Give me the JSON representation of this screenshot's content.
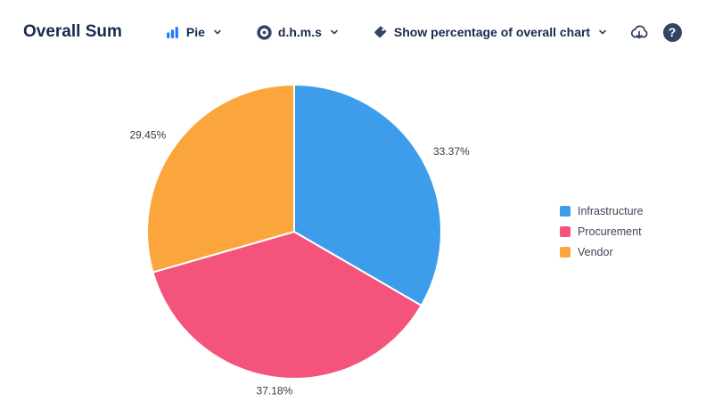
{
  "header": {
    "title": "Overall Sum",
    "chart_type": {
      "label": "Pie",
      "icon": "bar-chart-icon"
    },
    "time_format": {
      "label": "d.h.m.s",
      "icon": "clock-icon"
    },
    "percentage_option": {
      "label": "Show percentage of overall chart",
      "icon": "tag-icon"
    },
    "help_glyph": "?",
    "icons": {
      "export": "cloud-download-icon",
      "help": "question-mark-icon"
    }
  },
  "chart_data": {
    "type": "pie",
    "title": "Overall Sum",
    "labels": [
      "Infrastructure",
      "Procurement",
      "Vendor"
    ],
    "values": [
      33.37,
      37.18,
      29.45
    ],
    "value_labels": [
      "33.37%",
      "37.18%",
      "29.45%"
    ],
    "colors": [
      "#3D9DEA",
      "#F4547C",
      "#FBA63C"
    ],
    "legend_position": "right",
    "start_angle_deg": -90,
    "direction": "clockwise"
  }
}
